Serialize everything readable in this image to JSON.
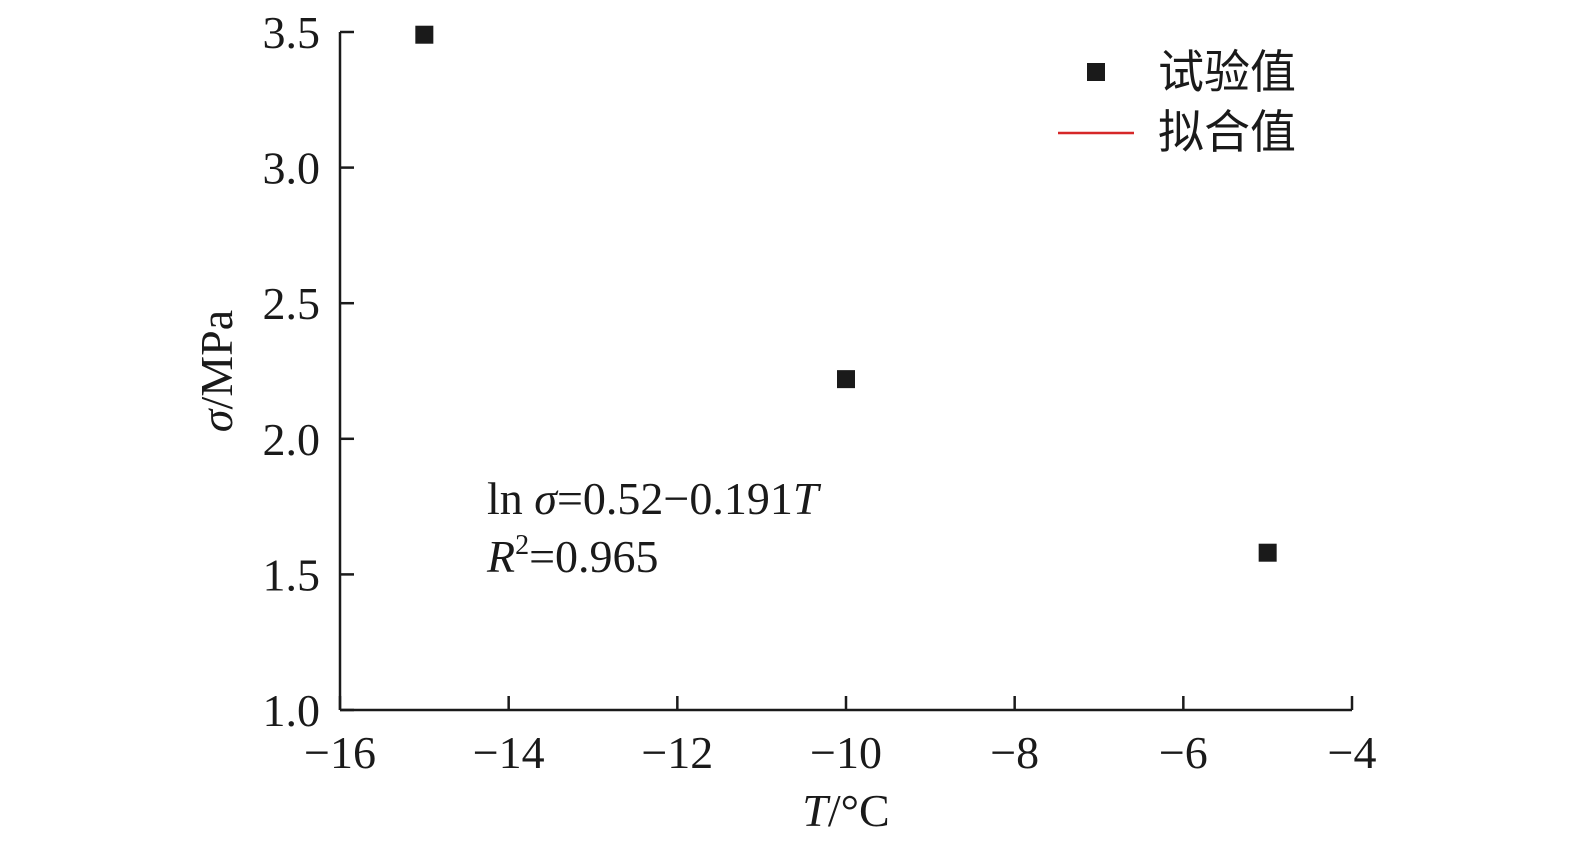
{
  "chart_data": {
    "type": "scatter",
    "xlabel": {
      "var": "T",
      "unit": "/°C"
    },
    "ylabel": {
      "var": "σ",
      "unit": "/MPa"
    },
    "xlim": [
      -16,
      -4
    ],
    "ylim": [
      1.0,
      3.5
    ],
    "xticks": [
      -16,
      -14,
      -12,
      -10,
      -8,
      -6,
      -4
    ],
    "xtick_labels": [
      "−16",
      "−14",
      "−12",
      "−10",
      "−8",
      "−6",
      "−4"
    ],
    "yticks": [
      1.0,
      1.5,
      2.0,
      2.5,
      3.0,
      3.5
    ],
    "ytick_labels": [
      "1.0",
      "1.5",
      "2.0",
      "2.5",
      "3.0",
      "3.5"
    ],
    "series": [
      {
        "name": "试验值",
        "kind": "scatter",
        "marker": "square",
        "color": "#1a1a1a",
        "x": [
          -15,
          -10,
          -5
        ],
        "y": [
          3.49,
          2.22,
          1.58
        ]
      },
      {
        "name": "拟合值",
        "kind": "line",
        "color": "#d62728",
        "equation": {
          "a": 0.52,
          "b": -0.191
        },
        "x_range": [
          -15,
          -5
        ]
      }
    ],
    "annotations": {
      "equation": {
        "ln": "ln ",
        "var": "σ",
        "rest": "=0.52−0.191",
        "tvar": "T"
      },
      "r2": {
        "var": "R",
        "sup": "2",
        "rest": "=0.965"
      }
    },
    "legend_position": "top-right",
    "grid": false
  }
}
